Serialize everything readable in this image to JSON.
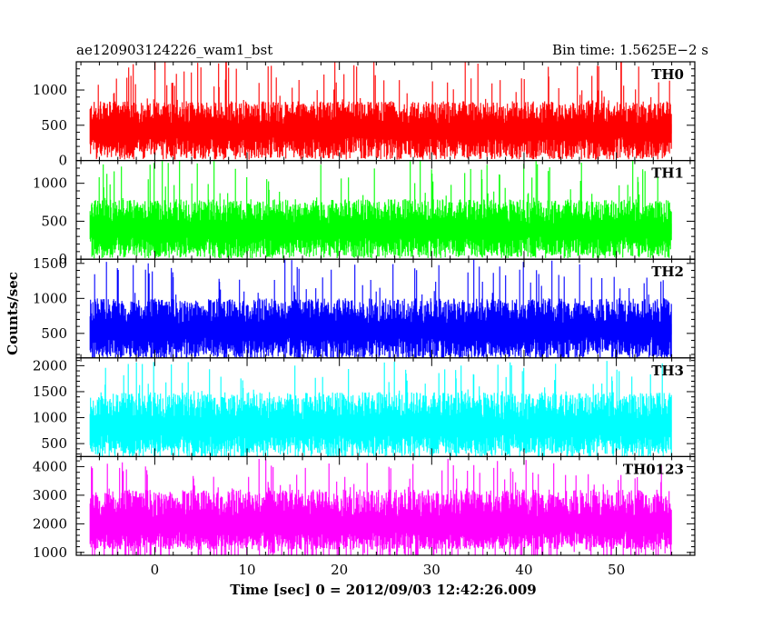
{
  "header": {
    "title_left": "ae120903124226_wam1_bst",
    "title_right": "Bin time: 1.5625E−2 s"
  },
  "chart_data": {
    "type": "line",
    "title": "ae120903124226_wam1_bst",
    "subtitle": "Bin time: 1.5625E−2 s",
    "xlabel": "Time [sec] 0 = 2012/09/03 12:42:26.009",
    "ylabel": "Counts/sec",
    "xlim": [
      -8.5,
      58.5
    ],
    "data_xrange": [
      -7.0,
      56.0
    ],
    "x_ticks": [
      0,
      10,
      20,
      30,
      40,
      50
    ],
    "grid": false,
    "panels": [
      {
        "name": "TH0",
        "color": "#ff0000",
        "ylim": [
          0,
          1400
        ],
        "y_ticks": [
          0,
          500,
          1000
        ],
        "base": 380,
        "low": 40,
        "spread": 230,
        "spike": 1450
      },
      {
        "name": "TH1",
        "color": "#00ff00",
        "ylim": [
          0,
          1300
        ],
        "y_ticks": [
          0,
          500,
          1000
        ],
        "base": 330,
        "low": 40,
        "spread": 230,
        "spike": 1320
      },
      {
        "name": "TH2",
        "color": "#0000ff",
        "ylim": [
          150,
          1560
        ],
        "y_ticks": [
          500,
          1000,
          1500
        ],
        "base": 480,
        "low": 160,
        "spread": 260,
        "spike": 1570
      },
      {
        "name": "TH3",
        "color": "#00ffff",
        "ylim": [
          250,
          2150
        ],
        "y_ticks": [
          500,
          1000,
          1500,
          2000
        ],
        "base": 730,
        "low": 300,
        "spread": 380,
        "spike": 2100
      },
      {
        "name": "TH0123",
        "color": "#ff00ff",
        "ylim": [
          900,
          4350
        ],
        "y_ticks": [
          1000,
          2000,
          3000,
          4000
        ],
        "base": 1800,
        "low": 1100,
        "spread": 700,
        "spike": 4300
      }
    ]
  }
}
